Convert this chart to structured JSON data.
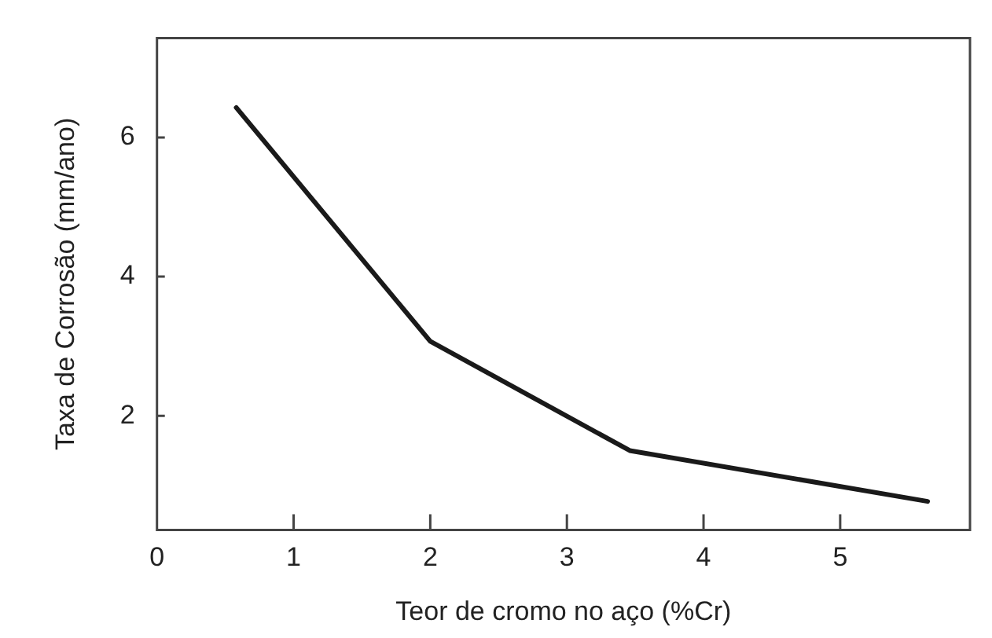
{
  "chart_data": {
    "type": "line",
    "xlabel": "Teor de cromo no aço (%Cr)",
    "ylabel": "Taxa de Corrosão (mm/ano)",
    "x": [
      0.58,
      2.0,
      3.46,
      5.64
    ],
    "series": [
      {
        "color": "#1a1a1a",
        "values": [
          6.43,
          3.07,
          1.5,
          0.77
        ]
      }
    ],
    "xlim": [
      0,
      5.95
    ],
    "xticks": [
      0,
      1,
      2,
      3,
      4,
      5
    ],
    "ylim": [
      0.36,
      7.43
    ],
    "yticks": [
      2,
      4,
      6
    ],
    "grid": false,
    "legend": false,
    "marker": "none",
    "line_style": "solid"
  }
}
